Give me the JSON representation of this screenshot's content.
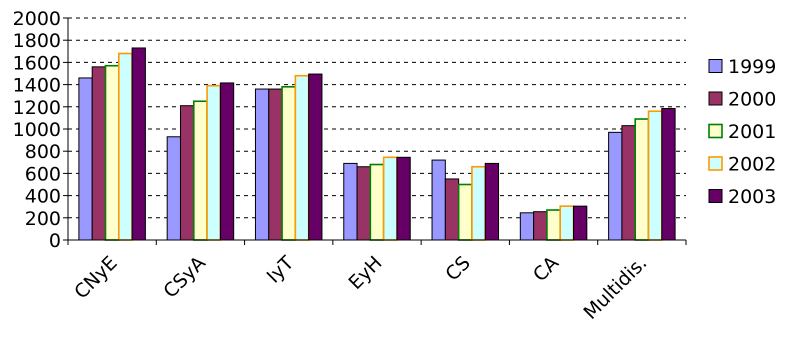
{
  "chart_data": {
    "type": "bar",
    "title": "",
    "xlabel": "",
    "ylabel": "",
    "ylim": [
      0,
      2000
    ],
    "yticks": [
      0,
      200,
      400,
      600,
      800,
      1000,
      1200,
      1400,
      1600,
      1800,
      2000
    ],
    "grid": "horizontal dashed",
    "legend_position": "right",
    "categories": [
      "CNyE",
      "CSyA",
      "IyT",
      "EyH",
      "CS",
      "CA",
      "Multidis."
    ],
    "series": [
      {
        "name": "1999",
        "fill": "#9999ff",
        "stroke": "#000000",
        "values": [
          1460,
          930,
          1360,
          690,
          720,
          245,
          970
        ]
      },
      {
        "name": "2000",
        "fill": "#993366",
        "stroke": "#000000",
        "values": [
          1560,
          1210,
          1360,
          660,
          550,
          255,
          1030
        ]
      },
      {
        "name": "2001",
        "fill": "#ffffcc",
        "stroke": "#008000",
        "values": [
          1570,
          1250,
          1380,
          680,
          500,
          270,
          1090
        ]
      },
      {
        "name": "2002",
        "fill": "#ccffff",
        "stroke": "#ff9900",
        "values": [
          1680,
          1390,
          1480,
          745,
          660,
          305,
          1160
        ]
      },
      {
        "name": "2003",
        "fill": "#660066",
        "stroke": "#000000",
        "values": [
          1730,
          1415,
          1495,
          745,
          690,
          305,
          1185
        ]
      }
    ]
  }
}
